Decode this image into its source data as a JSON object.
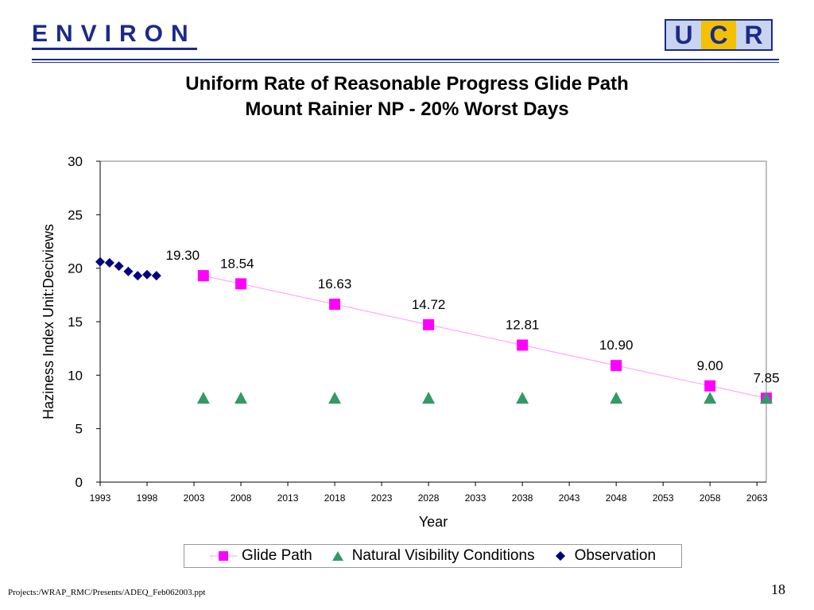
{
  "header": {
    "logo_left_text": "ENVIRON",
    "logo_right": {
      "u": "U",
      "c": "C",
      "r": "R"
    }
  },
  "chart_data": {
    "type": "scatter",
    "title": "Uniform Rate of Reasonable Progress Glide Path",
    "subtitle": "Mount Rainier NP - 20% Worst Days",
    "xlabel": "Year",
    "ylabel": "Haziness Index Unit:Deciviews",
    "xlim": [
      1993,
      2064
    ],
    "ylim": [
      0,
      30
    ],
    "x_ticks": [
      1993,
      1998,
      2003,
      2008,
      2013,
      2018,
      2023,
      2028,
      2033,
      2038,
      2043,
      2048,
      2053,
      2058,
      2063
    ],
    "y_ticks": [
      0,
      5,
      10,
      15,
      20,
      25,
      30
    ],
    "grid": false,
    "legend_position": "bottom",
    "series": [
      {
        "name": "Glide Path",
        "marker": "square",
        "color": "#ff00ff",
        "line_color": "#ff99ff",
        "connected": true,
        "points": [
          {
            "x": 2004,
            "y": 19.3,
            "label": "19.30"
          },
          {
            "x": 2008,
            "y": 18.54,
            "label": "18.54"
          },
          {
            "x": 2018,
            "y": 16.63,
            "label": "16.63"
          },
          {
            "x": 2028,
            "y": 14.72,
            "label": "14.72"
          },
          {
            "x": 2038,
            "y": 12.81,
            "label": "12.81"
          },
          {
            "x": 2048,
            "y": 10.9,
            "label": "10.90"
          },
          {
            "x": 2058,
            "y": 9.0,
            "label": "9.00"
          },
          {
            "x": 2064,
            "y": 7.85,
            "label": "7.85"
          }
        ]
      },
      {
        "name": "Natural Visibility Conditions",
        "marker": "triangle",
        "color": "#339966",
        "connected": false,
        "points": [
          {
            "x": 2004,
            "y": 7.85
          },
          {
            "x": 2008,
            "y": 7.85
          },
          {
            "x": 2018,
            "y": 7.85
          },
          {
            "x": 2028,
            "y": 7.85
          },
          {
            "x": 2038,
            "y": 7.85
          },
          {
            "x": 2048,
            "y": 7.85
          },
          {
            "x": 2058,
            "y": 7.85
          },
          {
            "x": 2064,
            "y": 7.85
          }
        ]
      },
      {
        "name": "Observation",
        "marker": "diamond",
        "color": "#000080",
        "connected": false,
        "points": [
          {
            "x": 1993,
            "y": 20.6
          },
          {
            "x": 1994,
            "y": 20.5
          },
          {
            "x": 1995,
            "y": 20.2
          },
          {
            "x": 1996,
            "y": 19.7
          },
          {
            "x": 1997,
            "y": 19.3
          },
          {
            "x": 1998,
            "y": 19.4
          },
          {
            "x": 1999,
            "y": 19.3
          }
        ]
      }
    ]
  },
  "footer": {
    "path": "Projects:/WRAP_RMC/Presents/ADEQ_Feb062003.ppt",
    "page_number": "18"
  }
}
